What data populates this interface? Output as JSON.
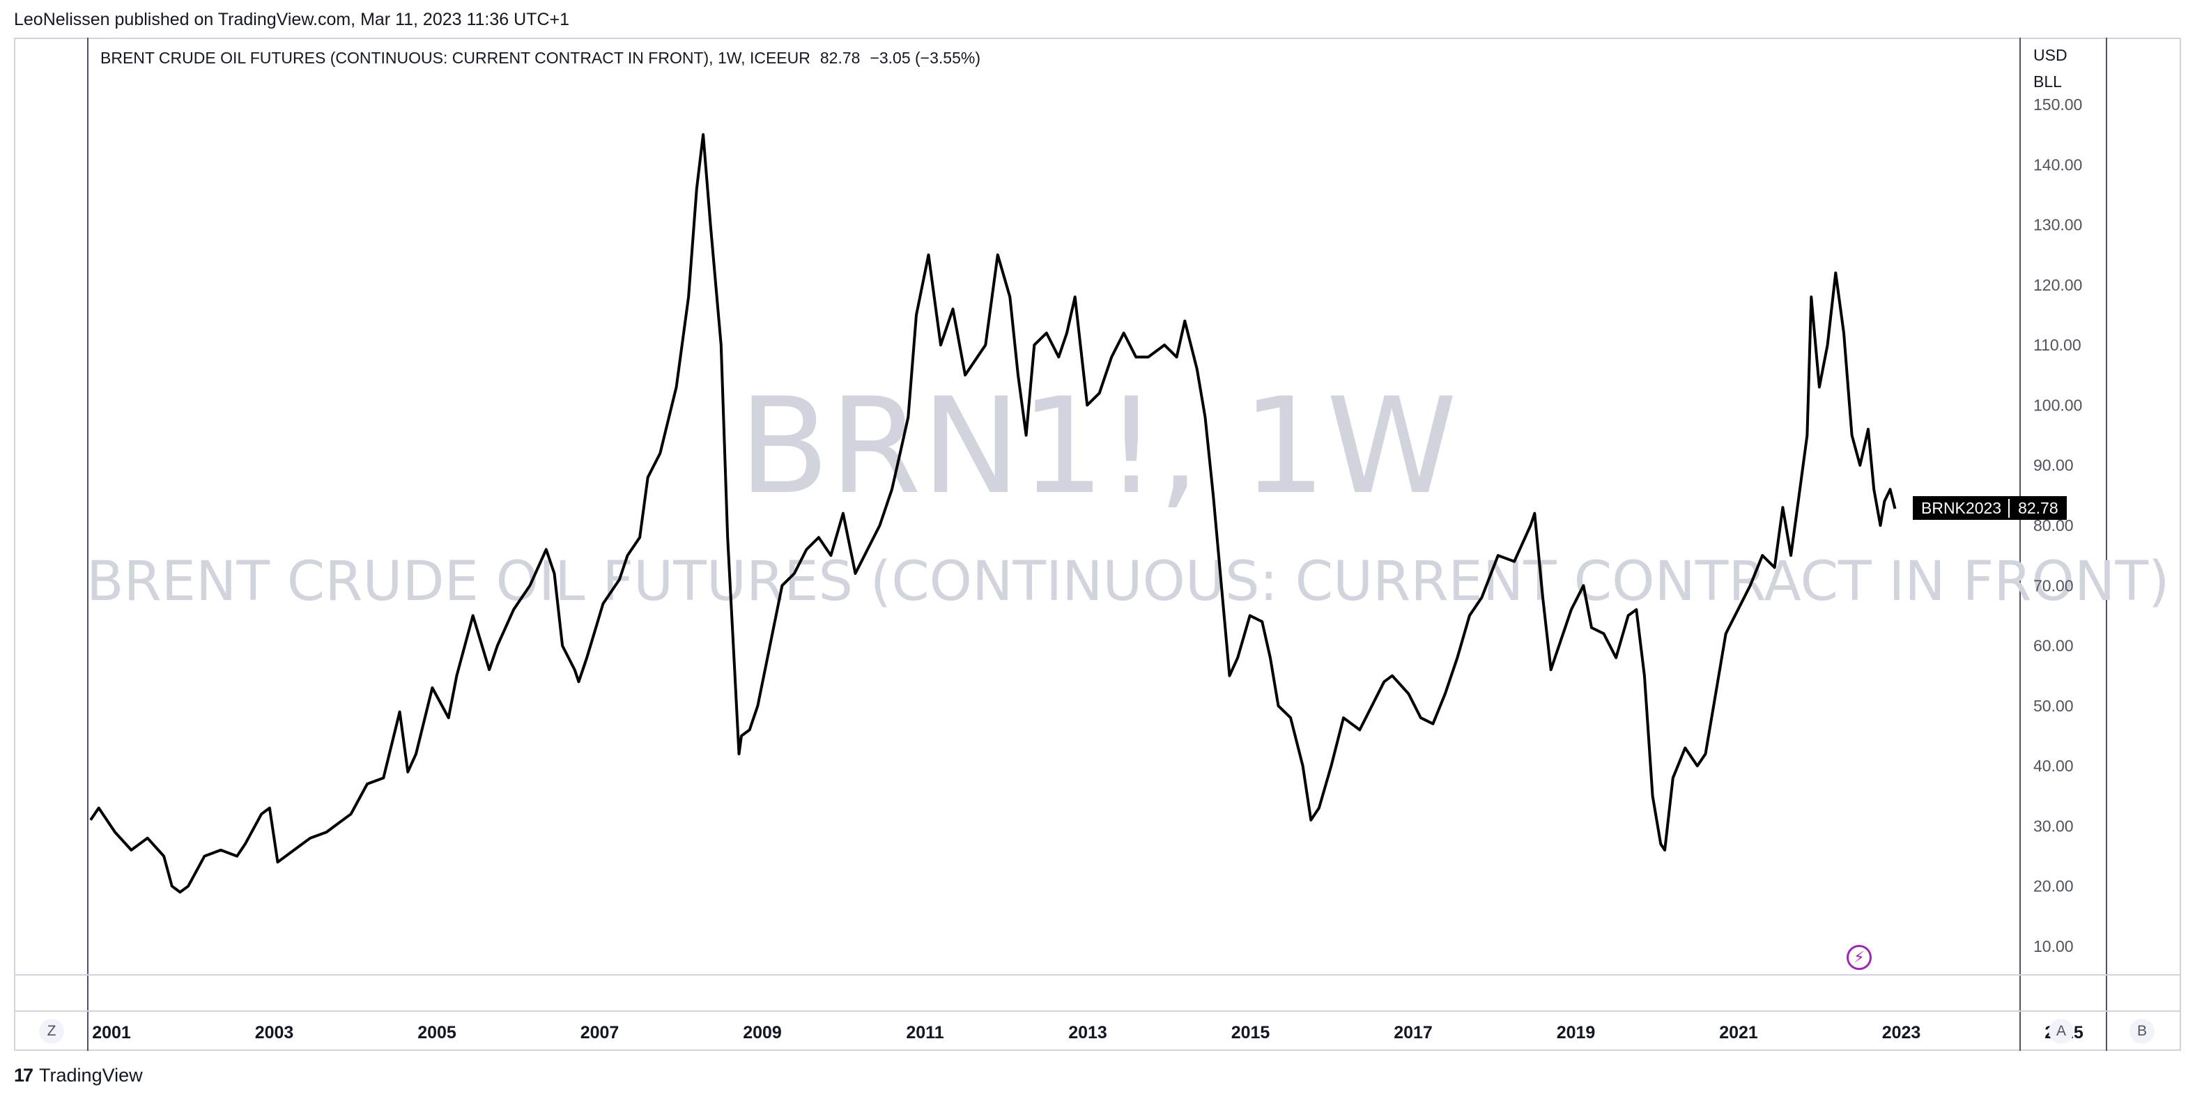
{
  "header": {
    "attribution": "LeoNelissen published on TradingView.com, Mar 11, 2023 11:36 UTC+1"
  },
  "legend": {
    "title": "BRENT CRUDE OIL FUTURES (CONTINUOUS: CURRENT CONTRACT IN FRONT), 1W, ICEEUR",
    "last": "82.78",
    "change": "−3.05 (−3.55%)"
  },
  "axis_currency": {
    "line1": "USD",
    "line2": "BLL"
  },
  "watermark": {
    "symbol": "BRN1!, 1W",
    "description": "BRENT CRUDE OIL FUTURES (CONTINUOUS: CURRENT CONTRACT IN FRONT)"
  },
  "price_label": {
    "symbol": "BRNK2023",
    "price": "82.78"
  },
  "buttons": {
    "left": "Z",
    "auto": "A",
    "right": "B"
  },
  "footer": {
    "brand": "TradingView",
    "mark": "17"
  },
  "colors": {
    "line": "#000000",
    "axis_text": "#50535e",
    "watermark": "#d1d4dc",
    "accent": "#9c27b0"
  },
  "chart_data": {
    "type": "line",
    "title": "BRENT CRUDE OIL FUTURES (CONTINUOUS: CURRENT CONTRACT IN FRONT), 1W, ICEEUR",
    "xlabel": "",
    "ylabel": "",
    "xlim": [
      2001.0,
      2025.0
    ],
    "ylim": [
      5,
      150
    ],
    "y_ticks": [
      "10.00",
      "20.00",
      "30.00",
      "40.00",
      "50.00",
      "60.00",
      "70.00",
      "80.00",
      "90.00",
      "100.00",
      "110.00",
      "120.00",
      "130.00",
      "140.00",
      "150.00"
    ],
    "x_ticks": [
      "2001",
      "2003",
      "2005",
      "2007",
      "2009",
      "2011",
      "2013",
      "2015",
      "2017",
      "2019",
      "2021",
      "2023",
      "2025"
    ],
    "grid": false,
    "series": [
      {
        "points": [
          [
            2001.0,
            31
          ],
          [
            2001.1,
            33
          ],
          [
            2001.3,
            29
          ],
          [
            2001.5,
            26
          ],
          [
            2001.7,
            28
          ],
          [
            2001.9,
            25
          ],
          [
            2002.0,
            20
          ],
          [
            2002.1,
            19
          ],
          [
            2002.2,
            20
          ],
          [
            2002.4,
            25
          ],
          [
            2002.6,
            26
          ],
          [
            2002.8,
            25
          ],
          [
            2002.9,
            27
          ],
          [
            2003.1,
            32
          ],
          [
            2003.2,
            33
          ],
          [
            2003.3,
            24
          ],
          [
            2003.5,
            26
          ],
          [
            2003.7,
            28
          ],
          [
            2003.9,
            29
          ],
          [
            2004.0,
            30
          ],
          [
            2004.2,
            32
          ],
          [
            2004.4,
            37
          ],
          [
            2004.6,
            38
          ],
          [
            2004.8,
            49
          ],
          [
            2004.9,
            39
          ],
          [
            2005.0,
            42
          ],
          [
            2005.2,
            53
          ],
          [
            2005.4,
            48
          ],
          [
            2005.5,
            55
          ],
          [
            2005.7,
            65
          ],
          [
            2005.9,
            56
          ],
          [
            2006.0,
            60
          ],
          [
            2006.2,
            66
          ],
          [
            2006.4,
            70
          ],
          [
            2006.6,
            76
          ],
          [
            2006.7,
            72
          ],
          [
            2006.8,
            60
          ],
          [
            2006.95,
            56
          ],
          [
            2007.0,
            54
          ],
          [
            2007.1,
            58
          ],
          [
            2007.3,
            67
          ],
          [
            2007.5,
            71
          ],
          [
            2007.6,
            75
          ],
          [
            2007.75,
            78
          ],
          [
            2007.85,
            88
          ],
          [
            2008.0,
            92
          ],
          [
            2008.2,
            103
          ],
          [
            2008.35,
            118
          ],
          [
            2008.45,
            136
          ],
          [
            2008.53,
            145
          ],
          [
            2008.62,
            130
          ],
          [
            2008.75,
            110
          ],
          [
            2008.83,
            78
          ],
          [
            2008.92,
            55
          ],
          [
            2008.97,
            42
          ],
          [
            2009.0,
            45
          ],
          [
            2009.1,
            46
          ],
          [
            2009.2,
            50
          ],
          [
            2009.35,
            60
          ],
          [
            2009.5,
            70
          ],
          [
            2009.65,
            72
          ],
          [
            2009.8,
            76
          ],
          [
            2009.95,
            78
          ],
          [
            2010.1,
            75
          ],
          [
            2010.25,
            82
          ],
          [
            2010.4,
            72
          ],
          [
            2010.55,
            76
          ],
          [
            2010.7,
            80
          ],
          [
            2010.85,
            86
          ],
          [
            2010.95,
            92
          ],
          [
            2011.05,
            98
          ],
          [
            2011.15,
            115
          ],
          [
            2011.3,
            125
          ],
          [
            2011.45,
            110
          ],
          [
            2011.6,
            116
          ],
          [
            2011.75,
            105
          ],
          [
            2011.9,
            108
          ],
          [
            2012.0,
            110
          ],
          [
            2012.15,
            125
          ],
          [
            2012.3,
            118
          ],
          [
            2012.4,
            105
          ],
          [
            2012.5,
            95
          ],
          [
            2012.6,
            110
          ],
          [
            2012.75,
            112
          ],
          [
            2012.9,
            108
          ],
          [
            2013.0,
            112
          ],
          [
            2013.1,
            118
          ],
          [
            2013.25,
            100
          ],
          [
            2013.4,
            102
          ],
          [
            2013.55,
            108
          ],
          [
            2013.7,
            112
          ],
          [
            2013.85,
            108
          ],
          [
            2014.0,
            108
          ],
          [
            2014.2,
            110
          ],
          [
            2014.35,
            108
          ],
          [
            2014.45,
            114
          ],
          [
            2014.6,
            106
          ],
          [
            2014.7,
            98
          ],
          [
            2014.8,
            85
          ],
          [
            2014.9,
            70
          ],
          [
            2015.0,
            55
          ],
          [
            2015.1,
            58
          ],
          [
            2015.25,
            65
          ],
          [
            2015.4,
            64
          ],
          [
            2015.5,
            58
          ],
          [
            2015.6,
            50
          ],
          [
            2015.75,
            48
          ],
          [
            2015.9,
            40
          ],
          [
            2016.0,
            31
          ],
          [
            2016.1,
            33
          ],
          [
            2016.25,
            40
          ],
          [
            2016.4,
            48
          ],
          [
            2016.6,
            46
          ],
          [
            2016.75,
            50
          ],
          [
            2016.9,
            54
          ],
          [
            2017.0,
            55
          ],
          [
            2017.2,
            52
          ],
          [
            2017.35,
            48
          ],
          [
            2017.5,
            47
          ],
          [
            2017.65,
            52
          ],
          [
            2017.8,
            58
          ],
          [
            2017.95,
            65
          ],
          [
            2018.1,
            68
          ],
          [
            2018.3,
            75
          ],
          [
            2018.5,
            74
          ],
          [
            2018.7,
            80
          ],
          [
            2018.75,
            82
          ],
          [
            2018.85,
            68
          ],
          [
            2018.95,
            56
          ],
          [
            2019.0,
            58
          ],
          [
            2019.2,
            66
          ],
          [
            2019.35,
            70
          ],
          [
            2019.45,
            63
          ],
          [
            2019.6,
            62
          ],
          [
            2019.75,
            58
          ],
          [
            2019.9,
            65
          ],
          [
            2020.0,
            66
          ],
          [
            2020.1,
            55
          ],
          [
            2020.2,
            35
          ],
          [
            2020.3,
            27
          ],
          [
            2020.35,
            26
          ],
          [
            2020.45,
            38
          ],
          [
            2020.6,
            43
          ],
          [
            2020.75,
            40
          ],
          [
            2020.85,
            42
          ],
          [
            2020.95,
            50
          ],
          [
            2021.1,
            62
          ],
          [
            2021.25,
            66
          ],
          [
            2021.4,
            70
          ],
          [
            2021.55,
            75
          ],
          [
            2021.7,
            73
          ],
          [
            2021.8,
            83
          ],
          [
            2021.9,
            75
          ],
          [
            2022.0,
            85
          ],
          [
            2022.1,
            95
          ],
          [
            2022.15,
            118
          ],
          [
            2022.25,
            103
          ],
          [
            2022.35,
            110
          ],
          [
            2022.45,
            122
          ],
          [
            2022.55,
            112
          ],
          [
            2022.65,
            95
          ],
          [
            2022.75,
            90
          ],
          [
            2022.85,
            96
          ],
          [
            2022.92,
            86
          ],
          [
            2023.0,
            80
          ],
          [
            2023.05,
            84
          ],
          [
            2023.12,
            86
          ],
          [
            2023.18,
            82.78
          ]
        ]
      }
    ]
  }
}
